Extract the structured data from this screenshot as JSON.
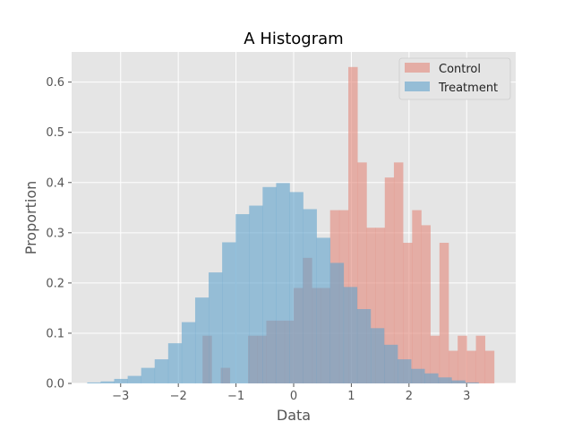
{
  "chart_data": {
    "type": "bar",
    "title": "A Histogram",
    "xlabel": "Data",
    "ylabel": "Proportion",
    "xlim": [
      -3.85,
      3.85
    ],
    "ylim": [
      0,
      0.66
    ],
    "xticks": [
      -3,
      -2,
      -1,
      0,
      1,
      2,
      3
    ],
    "yticks": [
      0.0,
      0.1,
      0.2,
      0.3,
      0.4,
      0.5,
      0.6
    ],
    "grid": true,
    "legend_position": "top-right",
    "colors": {
      "background": "#e5e5e5",
      "grid": "#ffffff",
      "control": "#e3877a",
      "treatment": "#5fa1cc"
    },
    "series": [
      {
        "name": "Control",
        "bin_start": -1.58,
        "bin_width": 0.158,
        "values": [
          0.095,
          0.0,
          0.031,
          0.0,
          0.0,
          0.095,
          0.095,
          0.125,
          0.125,
          0.125,
          0.19,
          0.25,
          0.19,
          0.19,
          0.345,
          0.345,
          0.63,
          0.44,
          0.31,
          0.31,
          0.41,
          0.44,
          0.28,
          0.345,
          0.315,
          0.095,
          0.28,
          0.065,
          0.095,
          0.065,
          0.095,
          0.065
        ]
      },
      {
        "name": "Treatment",
        "bin_start": -3.58,
        "bin_width": 0.234,
        "values": [
          0.002,
          0.004,
          0.009,
          0.015,
          0.031,
          0.048,
          0.08,
          0.122,
          0.171,
          0.221,
          0.281,
          0.337,
          0.354,
          0.391,
          0.399,
          0.381,
          0.347,
          0.29,
          0.24,
          0.192,
          0.148,
          0.11,
          0.077,
          0.048,
          0.029,
          0.02,
          0.012,
          0.006,
          0.002
        ]
      }
    ]
  }
}
